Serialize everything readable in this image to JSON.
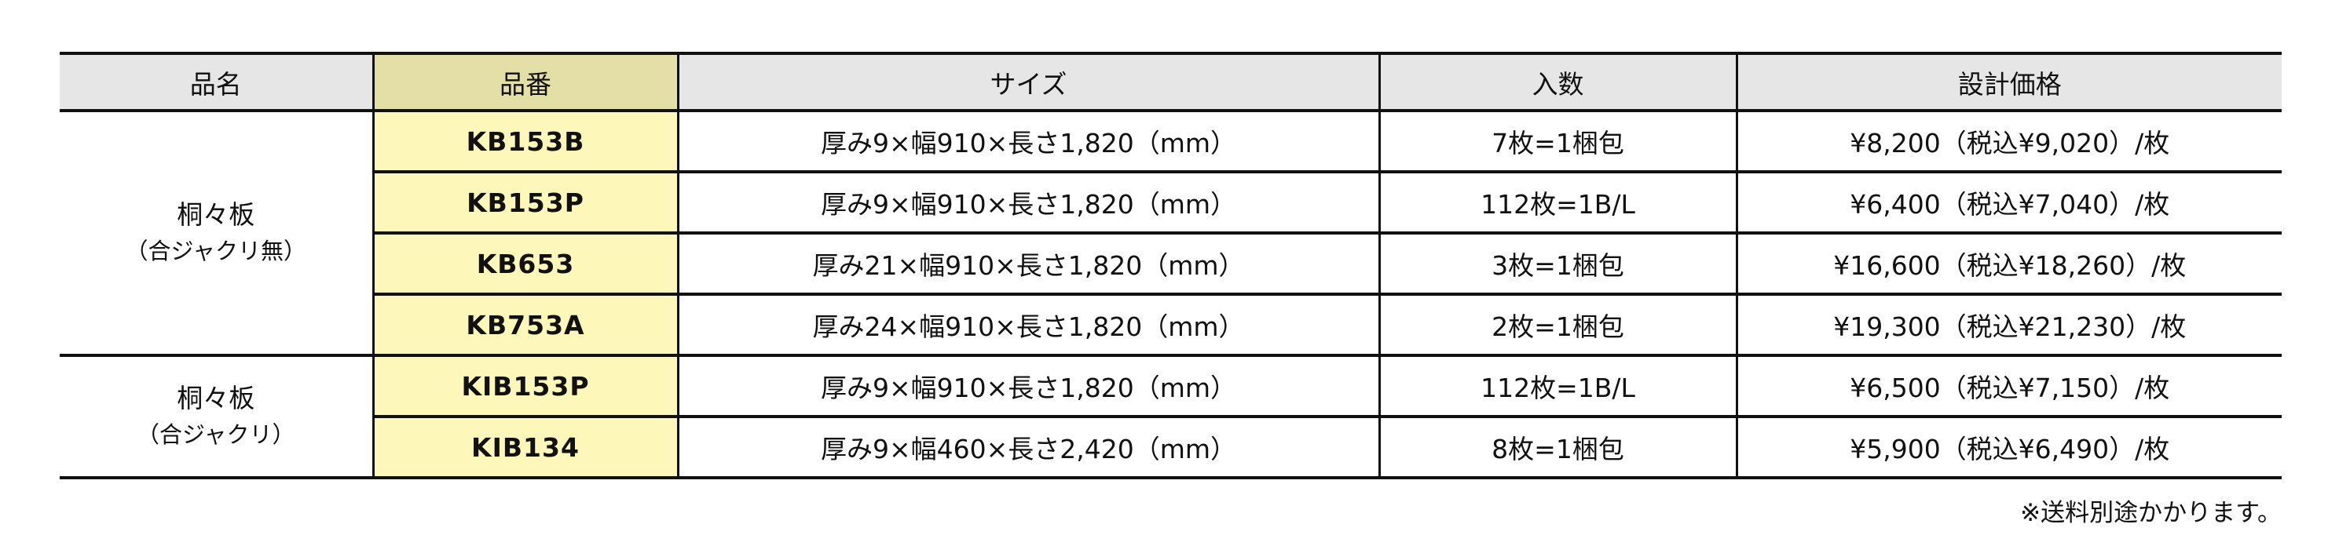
{
  "headers": {
    "name": "品名",
    "code": "品番",
    "size": "サイズ",
    "quantity": "入数",
    "price": "設計価格"
  },
  "groups": [
    {
      "name": "桐々板",
      "sub": "（合ジャクリ無）",
      "rows": [
        {
          "code": "KB153B",
          "size": "厚み9×幅910×長さ1,820（mm）",
          "quantity": "7枚=1梱包",
          "price": "¥8,200（税込¥9,020）/枚"
        },
        {
          "code": "KB153P",
          "size": "厚み9×幅910×長さ1,820（mm）",
          "quantity": "112枚=1B/L",
          "price": "¥6,400（税込¥7,040）/枚"
        },
        {
          "code": "KB653",
          "size": "厚み21×幅910×長さ1,820（mm）",
          "quantity": "3枚=1梱包",
          "price": "¥16,600（税込¥18,260）/枚"
        },
        {
          "code": "KB753A",
          "size": "厚み24×幅910×長さ1,820（mm）",
          "quantity": "2枚=1梱包",
          "price": "¥19,300（税込¥21,230）/枚"
        }
      ]
    },
    {
      "name": "桐々板",
      "sub": "（合ジャクリ）",
      "rows": [
        {
          "code": "KIB153P",
          "size": "厚み9×幅910×長さ1,820（mm）",
          "quantity": "112枚=1B/L",
          "price": "¥6,500（税込¥7,150）/枚"
        },
        {
          "code": "KIB134",
          "size": "厚み9×幅460×長さ2,420（mm）",
          "quantity": "8枚=1梱包",
          "price": "¥5,900（税込¥6,490）/枚"
        }
      ]
    }
  ],
  "footnote": "※送料別途かかります。",
  "colors": {
    "header_bg": "#e6e6e6",
    "code_header_bg": "#e4dfa6",
    "code_cell_bg": "#fdf8b9"
  }
}
